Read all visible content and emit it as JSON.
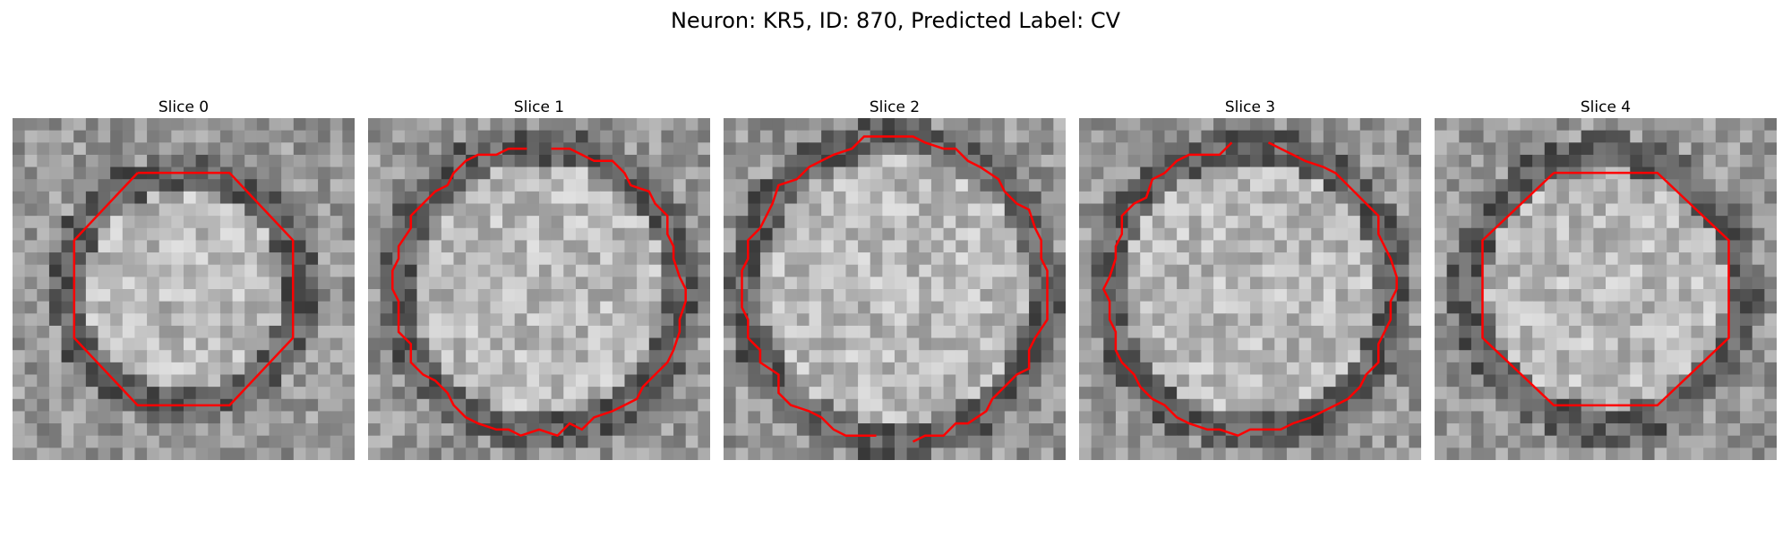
{
  "figure": {
    "title": "Neuron: KR5, ID: 870, Predicted Label: CV"
  },
  "panels": [
    {
      "label": "Slice 0",
      "seed": 11,
      "ring_radius": 0.34,
      "contour": "octagon_narrow",
      "contour_color": "#ff0000"
    },
    {
      "label": "Slice 1",
      "seed": 23,
      "ring_radius": 0.42,
      "contour": "irregular_round_gap_top",
      "contour_color": "#ff0000"
    },
    {
      "label": "Slice 2",
      "seed": 37,
      "ring_radius": 0.44,
      "contour": "irregular_round_gap_bottom",
      "contour_color": "#ff0000"
    },
    {
      "label": "Slice 3",
      "seed": 53,
      "ring_radius": 0.42,
      "contour": "irregular_round_gap_top",
      "contour_color": "#ff0000"
    },
    {
      "label": "Slice 4",
      "seed": 71,
      "ring_radius": 0.4,
      "contour": "octagon_wide",
      "contour_color": "#ff0000"
    }
  ],
  "colormap": "gray"
}
